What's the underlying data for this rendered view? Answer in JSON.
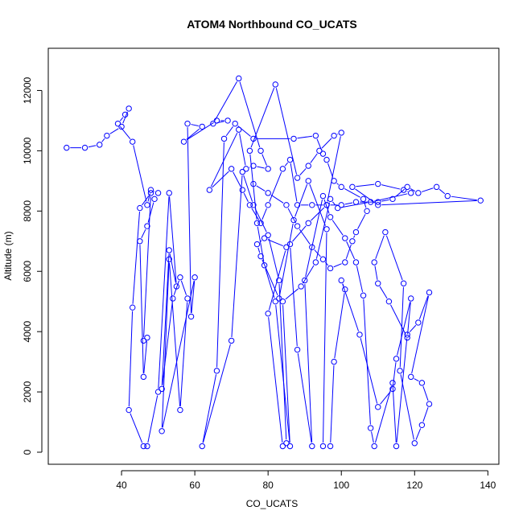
{
  "chart_data": {
    "type": "line",
    "title": "ATOM4 Northbound CO_UCATS",
    "xlabel": "CO_UCATS",
    "ylabel": "Altitude (m)",
    "xlim": [
      20,
      143
    ],
    "ylim": [
      -400,
      13400
    ],
    "x_ticks": [
      40,
      60,
      80,
      100,
      120,
      140
    ],
    "y_ticks": [
      0,
      2000,
      4000,
      6000,
      8000,
      10000,
      12000
    ],
    "x_tick_labels": [
      "40",
      "60",
      "80",
      "100",
      "120",
      "140"
    ],
    "y_tick_labels": [
      "0",
      "2000",
      "4000",
      "6000",
      "8000",
      "10000",
      "12000"
    ],
    "grid": false,
    "legend": "none",
    "series_color": "#0000ff",
    "marker": "open-circle",
    "series": [
      {
        "points": [
          [
            25,
            10100
          ],
          [
            30,
            10100
          ],
          [
            34,
            10200
          ],
          [
            36,
            10500
          ],
          [
            40,
            10800
          ],
          [
            42,
            11400
          ],
          [
            41,
            11200
          ],
          [
            39,
            10900
          ],
          [
            43,
            10300
          ],
          [
            47,
            8200
          ],
          [
            48,
            8700
          ],
          [
            50,
            8600
          ],
          [
            49,
            8400
          ],
          [
            47,
            7500
          ],
          [
            45,
            7000
          ],
          [
            46,
            2500
          ],
          [
            47,
            3800
          ],
          [
            46,
            3700
          ],
          [
            48,
            8600
          ],
          [
            45,
            8100
          ],
          [
            43,
            4800
          ],
          [
            42,
            1400
          ],
          [
            46,
            200
          ],
          [
            47,
            200
          ],
          [
            50,
            2000
          ],
          [
            53,
            8600
          ],
          [
            55,
            5500
          ],
          [
            53,
            6700
          ],
          [
            51,
            2100
          ],
          [
            54,
            5100
          ],
          [
            56,
            5800
          ],
          [
            58,
            5100
          ],
          [
            56,
            1400
          ],
          [
            53,
            6400
          ],
          [
            51,
            700
          ],
          [
            60,
            5800
          ],
          [
            59,
            4500
          ],
          [
            58,
            10900
          ],
          [
            62,
            10800
          ],
          [
            57,
            10300
          ],
          [
            66,
            11000
          ],
          [
            69,
            11000
          ],
          [
            65,
            10900
          ],
          [
            72,
            12400
          ],
          [
            78,
            10000
          ],
          [
            80,
            9400
          ],
          [
            76,
            9500
          ],
          [
            74,
            9400
          ],
          [
            72,
            10700
          ],
          [
            64,
            8700
          ],
          [
            70,
            9400
          ],
          [
            73,
            8700
          ],
          [
            75,
            8200
          ],
          [
            78,
            7600
          ],
          [
            80,
            8200
          ],
          [
            84,
            9400
          ],
          [
            86,
            9700
          ],
          [
            88,
            8200
          ],
          [
            92,
            8200
          ],
          [
            96,
            8200
          ],
          [
            100,
            8200
          ],
          [
            104,
            8300
          ],
          [
            110,
            8300
          ],
          [
            114,
            8400
          ],
          [
            118,
            8800
          ],
          [
            121,
            8600
          ],
          [
            126,
            8800
          ],
          [
            129,
            8500
          ],
          [
            138,
            8350
          ],
          [
            110,
            8200
          ],
          [
            103,
            8800
          ],
          [
            110,
            8900
          ],
          [
            117,
            8700
          ],
          [
            119,
            8600
          ],
          [
            108,
            8300
          ],
          [
            99,
            8100
          ],
          [
            97,
            8400
          ],
          [
            93,
            6300
          ],
          [
            89,
            5500
          ],
          [
            84,
            5000
          ],
          [
            86,
            200
          ],
          [
            82,
            5000
          ],
          [
            79,
            6200
          ],
          [
            77,
            7600
          ],
          [
            75,
            10000
          ],
          [
            82,
            12200
          ],
          [
            88,
            9100
          ],
          [
            91,
            9500
          ],
          [
            94,
            10000
          ],
          [
            98,
            10500
          ],
          [
            100,
            10600
          ],
          [
            96,
            8200
          ],
          [
            91,
            7600
          ],
          [
            86,
            6900
          ],
          [
            88,
            3400
          ],
          [
            92,
            200
          ],
          [
            90,
            5700
          ],
          [
            95,
            8500
          ],
          [
            97,
            7800
          ],
          [
            101,
            7100
          ],
          [
            104,
            6300
          ],
          [
            106,
            5200
          ],
          [
            108,
            800
          ],
          [
            109,
            200
          ],
          [
            114,
            2300
          ],
          [
            115,
            200
          ],
          [
            118,
            3900
          ],
          [
            121,
            4300
          ],
          [
            124,
            5300
          ],
          [
            119,
            2500
          ],
          [
            122,
            2300
          ],
          [
            124,
            1600
          ],
          [
            122,
            900
          ],
          [
            120,
            300
          ],
          [
            116,
            2700
          ],
          [
            117,
            5600
          ],
          [
            112,
            7300
          ],
          [
            109,
            6300
          ],
          [
            110,
            5600
          ],
          [
            113,
            5000
          ],
          [
            118,
            3800
          ],
          [
            119,
            5100
          ],
          [
            115,
            3100
          ],
          [
            114,
            2100
          ],
          [
            110,
            1500
          ],
          [
            105,
            3900
          ],
          [
            100,
            5700
          ],
          [
            101,
            5400
          ],
          [
            98,
            3000
          ],
          [
            97,
            200
          ],
          [
            95,
            200
          ],
          [
            96,
            7400
          ],
          [
            91,
            9000
          ],
          [
            87,
            7700
          ],
          [
            83,
            5100
          ],
          [
            78,
            6500
          ],
          [
            77,
            6900
          ],
          [
            79,
            7100
          ],
          [
            85,
            6800
          ],
          [
            80,
            4600
          ],
          [
            84,
            200
          ],
          [
            85,
            300
          ],
          [
            83,
            5700
          ],
          [
            80,
            7200
          ],
          [
            76,
            8200
          ],
          [
            73,
            9300
          ],
          [
            70,
            3700
          ],
          [
            62,
            200
          ],
          [
            66,
            2700
          ],
          [
            68,
            10400
          ],
          [
            71,
            10900
          ],
          [
            76,
            10400
          ],
          [
            87,
            10400
          ],
          [
            93,
            10500
          ],
          [
            95,
            9900
          ],
          [
            96,
            9700
          ],
          [
            98,
            9000
          ],
          [
            100,
            8800
          ],
          [
            106,
            8400
          ],
          [
            107,
            8000
          ],
          [
            104,
            7300
          ],
          [
            103,
            7000
          ],
          [
            101,
            6300
          ],
          [
            97,
            6100
          ],
          [
            95,
            6400
          ],
          [
            92,
            6800
          ],
          [
            88,
            7500
          ],
          [
            85,
            8200
          ],
          [
            80,
            8600
          ],
          [
            76,
            8900
          ]
        ]
      }
    ]
  }
}
